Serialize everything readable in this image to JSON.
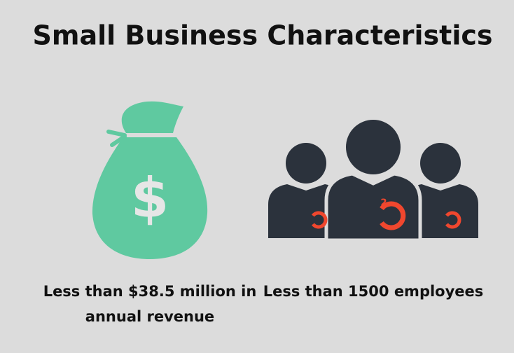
{
  "title": "Small Business Characteristics",
  "items": [
    {
      "icon_text": "$",
      "caption_lines": [
        "Less than $38.5 million in",
        "annual revenue"
      ]
    },
    {
      "icon_badge": "2",
      "caption_lines": [
        "Less than 1500 employees"
      ]
    }
  ]
}
